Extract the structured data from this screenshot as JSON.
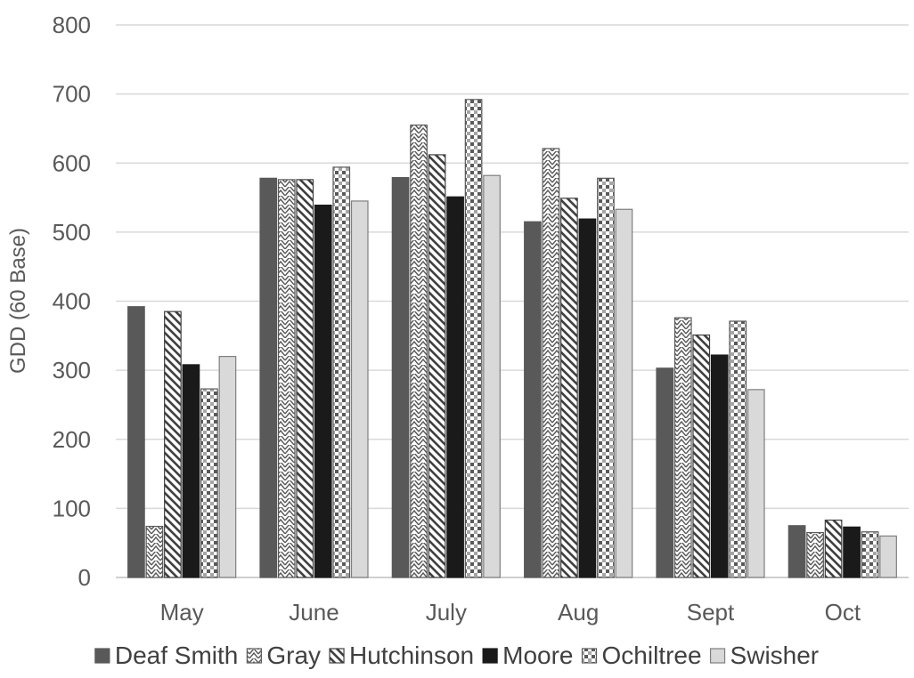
{
  "chart_data": {
    "type": "bar",
    "ylabel": "GDD (60 Base)",
    "xlabel": "",
    "ylim": [
      0,
      800
    ],
    "yticks": [
      0,
      100,
      200,
      300,
      400,
      500,
      600,
      700,
      800
    ],
    "grid": true,
    "legend_position": "bottom",
    "categories": [
      "May",
      "June",
      "July",
      "Aug",
      "Sept",
      "Oct"
    ],
    "series": [
      {
        "name": "Deaf Smith",
        "pattern": "solid-dark",
        "color": "#595959",
        "values": [
          392,
          578,
          579,
          515,
          303,
          75
        ]
      },
      {
        "name": "Gray",
        "pattern": "zigzag",
        "color": "#ffffff",
        "values": [
          74,
          576,
          655,
          621,
          376,
          65
        ]
      },
      {
        "name": "Hutchinson",
        "pattern": "diagonal",
        "color": "#ffffff",
        "values": [
          385,
          576,
          612,
          549,
          351,
          83
        ]
      },
      {
        "name": "Moore",
        "pattern": "solid-black",
        "color": "#1a1a1a",
        "values": [
          308,
          539,
          551,
          519,
          322,
          73
        ]
      },
      {
        "name": "Ochiltree",
        "pattern": "checker",
        "color": "#ffffff",
        "values": [
          273,
          594,
          692,
          578,
          371,
          66
        ]
      },
      {
        "name": "Swisher",
        "pattern": "solid-light",
        "color": "#d9d9d9",
        "values": [
          320,
          545,
          582,
          533,
          272,
          60
        ]
      }
    ]
  }
}
